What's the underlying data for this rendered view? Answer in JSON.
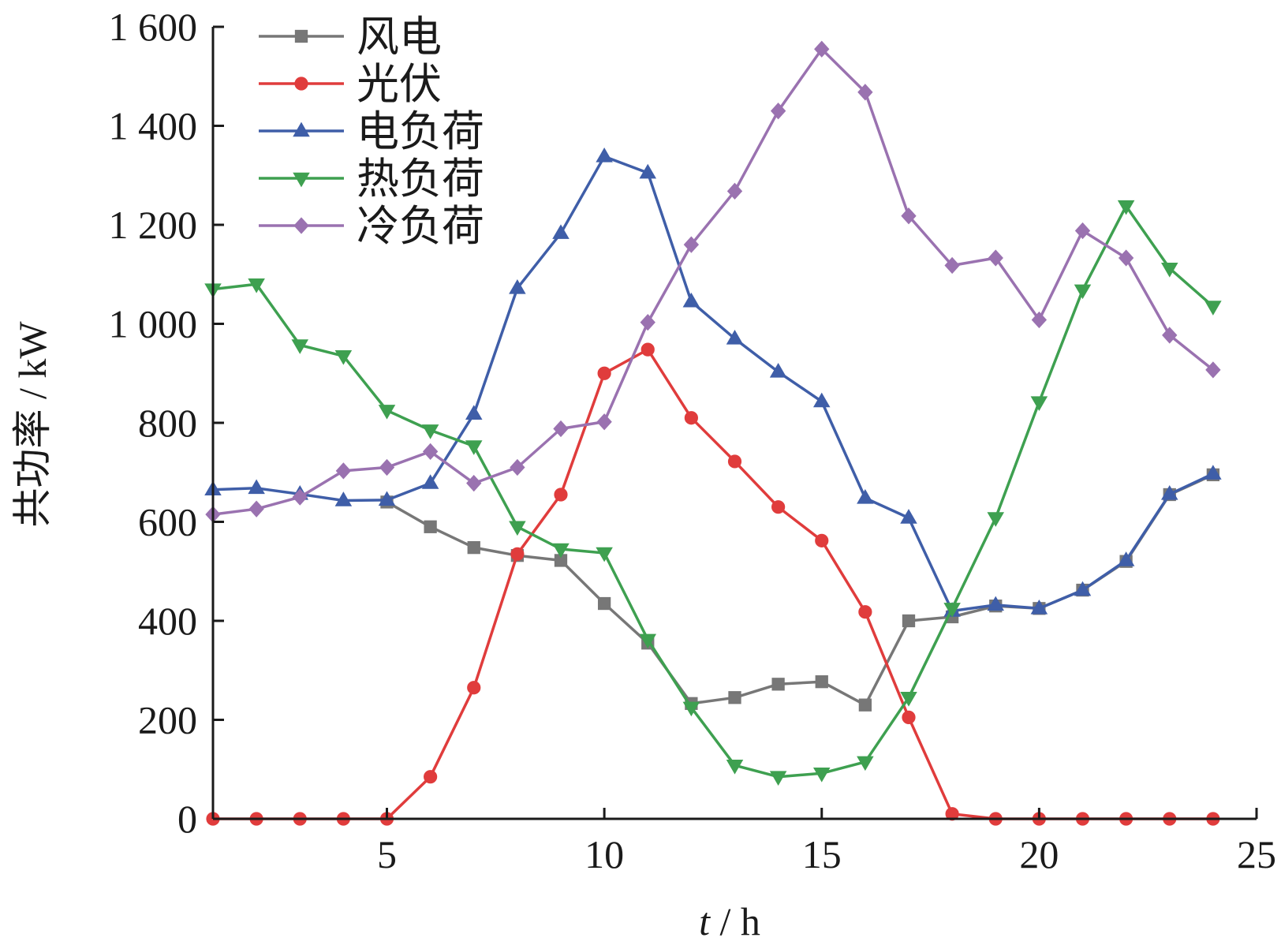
{
  "chart_data": {
    "type": "line",
    "xlabel_var": "t",
    "xlabel_unit": " / h",
    "ylabel": "共功率 / kW",
    "xlim": [
      1,
      25
    ],
    "ylim": [
      0,
      1600
    ],
    "xticks": [
      5,
      10,
      15,
      20,
      25
    ],
    "yticks": [
      0,
      200,
      400,
      600,
      800,
      1000,
      1200,
      1400,
      1600
    ],
    "ytick_labels": [
      "0",
      "200",
      "400",
      "600",
      "800",
      "1 000",
      "1 200",
      "1 400",
      "1 600"
    ],
    "legend_position": "top-left",
    "grid": false,
    "x": [
      1,
      2,
      3,
      4,
      5,
      6,
      7,
      8,
      9,
      10,
      11,
      12,
      13,
      14,
      15,
      16,
      17,
      18,
      19,
      20,
      21,
      22,
      23,
      24
    ],
    "series": [
      {
        "name": "风电",
        "color": "#777777",
        "marker": "square",
        "values": [
          null,
          null,
          null,
          null,
          640,
          590,
          548,
          532,
          522,
          435,
          355,
          233,
          245,
          272,
          277,
          230,
          400,
          408,
          430,
          425,
          462,
          520,
          655,
          695
        ]
      },
      {
        "name": "光伏",
        "color": "#e03c3c",
        "marker": "circle",
        "values": [
          0,
          0,
          0,
          0,
          0,
          85,
          265,
          535,
          655,
          900,
          948,
          810,
          722,
          630,
          562,
          418,
          205,
          10,
          0,
          0,
          0,
          0,
          0,
          0
        ]
      },
      {
        "name": "电负荷",
        "color": "#3f5ea8",
        "marker": "triangle-up",
        "values": [
          665,
          668,
          656,
          643,
          644,
          678,
          818,
          1072,
          1183,
          1338,
          1305,
          1045,
          970,
          903,
          843,
          648,
          608,
          420,
          432,
          425,
          462,
          522,
          656,
          697
        ]
      },
      {
        "name": "热负荷",
        "color": "#3ea050",
        "marker": "triangle-down",
        "values": [
          1070,
          1080,
          957,
          935,
          825,
          785,
          753,
          590,
          545,
          537,
          362,
          225,
          108,
          85,
          92,
          115,
          245,
          425,
          608,
          842,
          1068,
          1238,
          1112,
          1035
        ]
      },
      {
        "name": "冷负荷",
        "color": "#9a72b0",
        "marker": "diamond",
        "values": [
          615,
          626,
          650,
          703,
          710,
          742,
          678,
          710,
          788,
          802,
          1003,
          1160,
          1268,
          1430,
          1555,
          1468,
          1218,
          1118,
          1133,
          1008,
          1188,
          1133,
          977,
          907
        ]
      }
    ]
  }
}
